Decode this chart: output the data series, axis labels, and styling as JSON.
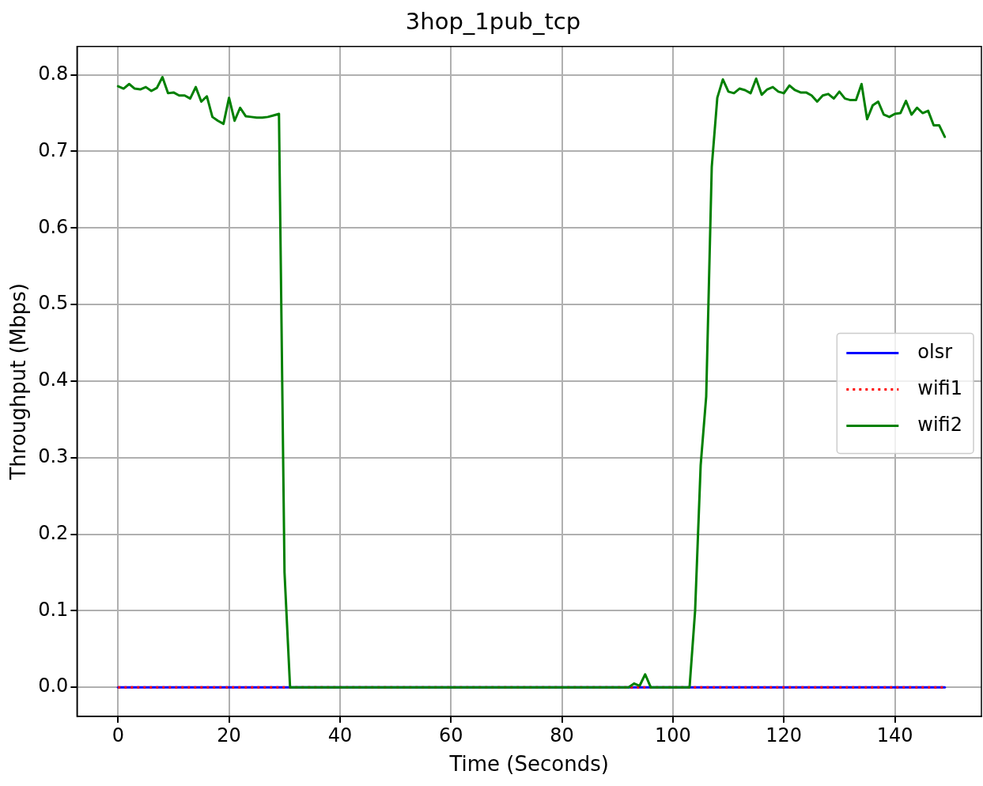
{
  "chart_data": {
    "type": "line",
    "title": "3hop_1pub_tcp",
    "xlabel": "Time (Seconds)",
    "ylabel": "Throughput (Mbps)",
    "xlim": [
      -7.4,
      155.6
    ],
    "xticks": [
      0,
      20,
      40,
      60,
      80,
      100,
      120,
      140
    ],
    "ylim": [
      -0.038,
      0.837
    ],
    "yticks": [
      {
        "value": 0,
        "label": "0.0"
      },
      0.1,
      0.2,
      0.3,
      0.4,
      0.5,
      0.6,
      0.7,
      0.8
    ],
    "grid": true,
    "legend": "right",
    "marker": "none",
    "series": [
      {
        "name": "olsr",
        "color": "#0000ff",
        "line_style": "solid",
        "x": [
          0,
          149
        ],
        "values": [
          0,
          0
        ]
      },
      {
        "name": "wifi1",
        "color": "#ff0000",
        "line_style": "dotted",
        "x": [
          0,
          149
        ],
        "values": [
          0,
          0
        ]
      },
      {
        "name": "wifi2",
        "color": "#008000",
        "line_style": "solid",
        "x": [
          0,
          1,
          2,
          3,
          4,
          5,
          6,
          7,
          8,
          9,
          10,
          11,
          12,
          13,
          14,
          15,
          16,
          17,
          18,
          19,
          20,
          21,
          22,
          23,
          24,
          25,
          26,
          27,
          28,
          29,
          30,
          31,
          92,
          93,
          94,
          95,
          96,
          103,
          104,
          105,
          106,
          107,
          108,
          109,
          110,
          111,
          112,
          113,
          114,
          115,
          116,
          117,
          118,
          119,
          120,
          121,
          122,
          123,
          124,
          125,
          126,
          127,
          128,
          129,
          130,
          131,
          132,
          133,
          134,
          135,
          136,
          137,
          138,
          139,
          140,
          141,
          142,
          143,
          144,
          145,
          146,
          147,
          148,
          149
        ],
        "values": [
          0.785,
          0.782,
          0.788,
          0.782,
          0.781,
          0.784,
          0.779,
          0.783,
          0.797,
          0.776,
          0.777,
          0.773,
          0.773,
          0.769,
          0.784,
          0.765,
          0.772,
          0.745,
          0.74,
          0.736,
          0.77,
          0.74,
          0.757,
          0.746,
          0.745,
          0.744,
          0.744,
          0.745,
          0.747,
          0.749,
          0.15,
          0,
          0,
          0.005,
          0.002,
          0.017,
          0,
          0,
          0.1,
          0.29,
          0.38,
          0.68,
          0.77,
          0.794,
          0.778,
          0.776,
          0.782,
          0.78,
          0.776,
          0.795,
          0.774,
          0.781,
          0.784,
          0.778,
          0.776,
          0.786,
          0.78,
          0.777,
          0.777,
          0.773,
          0.765,
          0.773,
          0.775,
          0.769,
          0.778,
          0.769,
          0.767,
          0.767,
          0.788,
          0.742,
          0.76,
          0.765,
          0.748,
          0.745,
          0.749,
          0.75,
          0.766,
          0.748,
          0.757,
          0.75,
          0.753,
          0.734,
          0.734,
          0.719
        ]
      }
    ]
  }
}
